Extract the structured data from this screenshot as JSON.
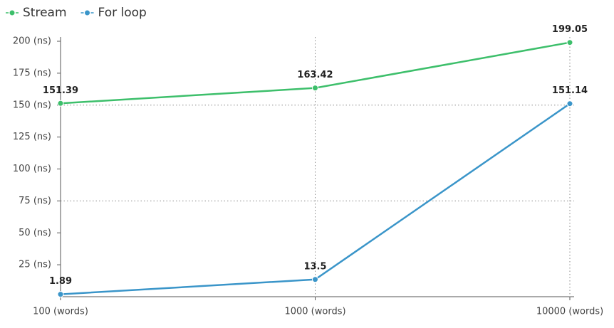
{
  "chart_data": {
    "type": "line",
    "categories": [
      "100 (words)",
      "1000 (words)",
      "10000 (words)"
    ],
    "series": [
      {
        "name": "Stream",
        "color": "#3dbf6b",
        "values": [
          151.39,
          163.42,
          199.05
        ]
      },
      {
        "name": "For loop",
        "color": "#3a95c9",
        "values": [
          1.89,
          13.5,
          151.14
        ]
      }
    ],
    "ylim": [
      0,
      200
    ],
    "yticks": [
      {
        "value": 25,
        "label": "25 (ns)"
      },
      {
        "value": 50,
        "label": "50 (ns)"
      },
      {
        "value": 75,
        "label": "75 (ns)"
      },
      {
        "value": 100,
        "label": "100 (ns)"
      },
      {
        "value": 125,
        "label": "125 (ns)"
      },
      {
        "value": 150,
        "label": "150 (ns)"
      },
      {
        "value": 175,
        "label": "175 (ns)"
      },
      {
        "value": 200,
        "label": "200 (ns)"
      }
    ],
    "ygrid": [
      75,
      150
    ],
    "xgrid": true,
    "legend": "top-left"
  }
}
